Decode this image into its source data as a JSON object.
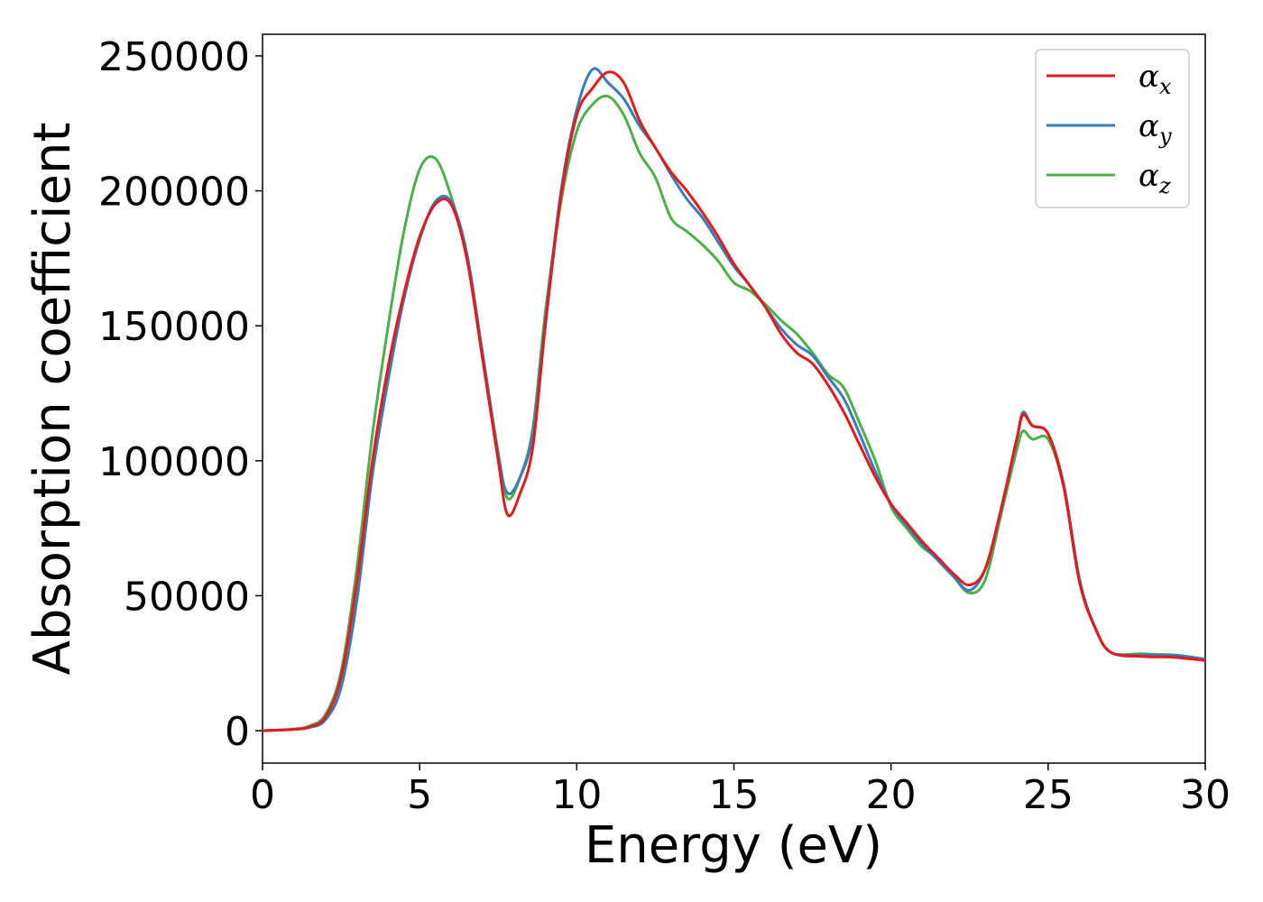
{
  "chart_data": {
    "type": "line",
    "xlabel": "Energy (eV)",
    "ylabel": "Absorption coefficient",
    "xlim": [
      0,
      30
    ],
    "ylim": [
      -12000,
      258000
    ],
    "xticks": [
      0,
      5,
      10,
      15,
      20,
      25,
      30
    ],
    "xtick_labels": [
      "0",
      "5",
      "10",
      "15",
      "20",
      "25",
      "30"
    ],
    "yticks": [
      0,
      50000,
      100000,
      150000,
      200000,
      250000
    ],
    "ytick_labels": [
      "0",
      "50000",
      "100000",
      "150000",
      "200000",
      "250000"
    ],
    "grid": false,
    "legend": "top-right",
    "x": [
      0,
      1,
      1.5,
      2,
      2.5,
      3,
      3.5,
      4,
      4.5,
      5,
      5.5,
      6,
      6.5,
      7,
      7.5,
      7.8,
      8.2,
      8.6,
      9,
      9.5,
      10,
      10.5,
      11,
      11.5,
      12,
      12.5,
      13,
      13.5,
      14,
      14.5,
      15,
      15.5,
      16,
      16.5,
      17,
      17.5,
      18,
      18.5,
      19,
      19.5,
      20,
      20.5,
      21,
      21.5,
      22,
      22.5,
      23,
      23.5,
      24,
      24.2,
      24.5,
      25,
      25.5,
      26,
      26.5,
      27,
      28,
      29,
      30
    ],
    "series": [
      {
        "name": "x",
        "color": "#e41a1c",
        "values": [
          0,
          500,
          1500,
          5000,
          20000,
          55000,
          100000,
          135000,
          162000,
          183000,
          195000,
          195000,
          175000,
          138000,
          100000,
          80000,
          88000,
          105000,
          150000,
          198000,
          228000,
          238000,
          244000,
          240000,
          226000,
          216000,
          207000,
          200000,
          192000,
          183000,
          173000,
          165000,
          157000,
          147000,
          140000,
          136000,
          128000,
          118000,
          106000,
          94000,
          84000,
          77000,
          70000,
          64000,
          58000,
          54000,
          60000,
          82000,
          108000,
          117000,
          113000,
          110000,
          90000,
          55000,
          38000,
          29000,
          27500,
          27200,
          26000
        ]
      },
      {
        "name": "y",
        "color": "#377eb8",
        "values": [
          0,
          500,
          1200,
          4000,
          16000,
          48000,
          95000,
          130000,
          160000,
          182000,
          196000,
          196000,
          177000,
          140000,
          102000,
          88000,
          94000,
          110000,
          152000,
          200000,
          230000,
          245000,
          240000,
          234000,
          224000,
          216000,
          206000,
          197000,
          190000,
          181000,
          172000,
          165000,
          157000,
          149000,
          143000,
          139000,
          131000,
          123000,
          110000,
          96000,
          84000,
          76000,
          69000,
          63000,
          57000,
          52000,
          60000,
          82000,
          108000,
          118000,
          113000,
          110000,
          91000,
          56000,
          38000,
          29000,
          28000,
          28000,
          26500
        ]
      },
      {
        "name": "z",
        "color": "#4daf4a",
        "values": [
          0,
          600,
          1800,
          6000,
          22000,
          60000,
          110000,
          150000,
          185000,
          208000,
          212000,
          198000,
          176000,
          140000,
          103000,
          86000,
          94000,
          112000,
          155000,
          196000,
          222000,
          232000,
          235000,
          228000,
          214000,
          205000,
          190000,
          185000,
          180000,
          174000,
          166000,
          163000,
          158000,
          152000,
          147000,
          140000,
          132000,
          127000,
          114000,
          100000,
          83000,
          75000,
          68000,
          64000,
          57000,
          51000,
          56000,
          80000,
          104000,
          111000,
          108000,
          108000,
          90000,
          55000,
          38000,
          29000,
          28500,
          28000,
          26500
        ]
      }
    ]
  },
  "legend_items": [
    {
      "symbol": "α",
      "sub": "x"
    },
    {
      "symbol": "α",
      "sub": "y"
    },
    {
      "symbol": "α",
      "sub": "z"
    }
  ]
}
